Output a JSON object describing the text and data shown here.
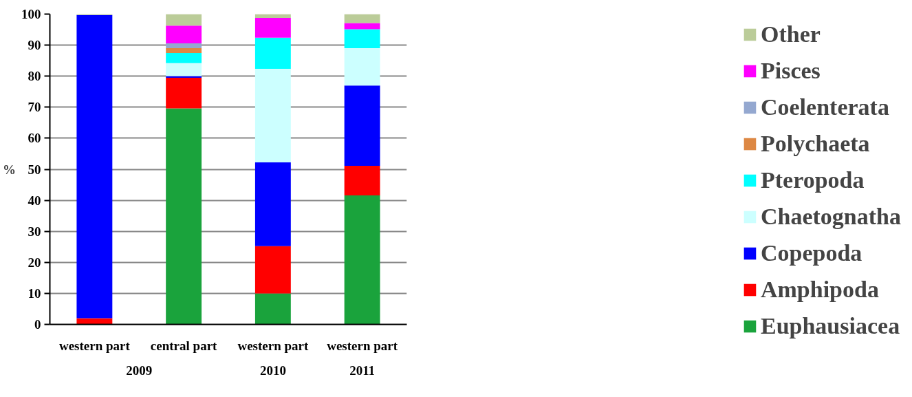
{
  "chart_data": {
    "type": "bar",
    "stacked": true,
    "ylabel": "%",
    "categories": [
      "western part",
      "central part",
      "western part",
      "western part"
    ],
    "annotations": [
      "2009",
      "2010",
      "2011"
    ],
    "series": [
      {
        "name": "Euphausiacea",
        "color": "#1aa33c",
        "values": [
          0,
          69.6,
          10.0,
          41.6
        ]
      },
      {
        "name": "Amphipoda",
        "color": "#ff0000",
        "values": [
          2.0,
          9.9,
          15.2,
          9.5
        ]
      },
      {
        "name": "Copepoda",
        "color": "#0000ff",
        "values": [
          97.7,
          0.5,
          27.0,
          25.9
        ]
      },
      {
        "name": "Chaetognatha",
        "color": "#ccffff",
        "values": [
          0,
          4.2,
          30.2,
          12.0
        ]
      },
      {
        "name": "Pteropoda",
        "color": "#00ffff",
        "values": [
          0,
          3.3,
          10.0,
          6.1
        ]
      },
      {
        "name": "Polychaeta",
        "color": "#dd8844",
        "values": [
          0,
          1.5,
          0,
          0
        ]
      },
      {
        "name": "Coelenterata",
        "color": "#94a8d0",
        "values": [
          0,
          1.6,
          0,
          0
        ]
      },
      {
        "name": "Pisces",
        "color": "#ff00ff",
        "values": [
          0,
          5.7,
          6.4,
          2.0
        ]
      },
      {
        "name": "Other",
        "color": "#bbcc99",
        "values": [
          0.3,
          3.7,
          1.2,
          2.9
        ]
      }
    ],
    "ylim": [
      0,
      100
    ],
    "yticks": [
      0,
      10,
      20,
      30,
      40,
      50,
      60,
      70,
      80,
      90,
      100
    ],
    "grid": "y",
    "legend": "right"
  }
}
